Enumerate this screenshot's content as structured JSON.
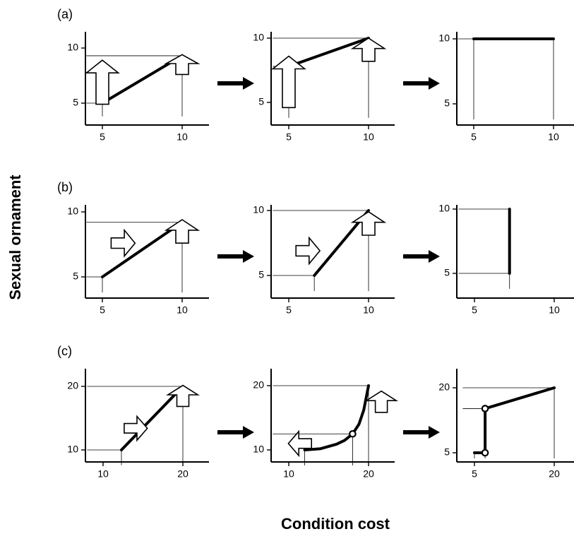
{
  "figure": {
    "ylabel": "Sexual ornament",
    "xlabel": "Condition cost"
  },
  "rows": [
    {
      "label": "(a)",
      "panels": [
        {
          "xticks": [
            "5",
            "10"
          ],
          "yticks": [
            "5",
            "10"
          ],
          "lines": [
            {
              "points": [
                [
                  5,
                  5
                ],
                [
                  10,
                  9.3
                ]
              ]
            }
          ],
          "guides": [
            [
              [
                5,
                5
              ],
              [
                4,
                5
              ]
            ],
            [
              [
                5,
                5
              ],
              [
                5,
                3.8
              ]
            ],
            [
              [
                10,
                9.3
              ],
              [
                4,
                9.3
              ]
            ],
            [
              [
                10,
                9.3
              ],
              [
                10,
                3.8
              ]
            ]
          ],
          "arrows": [
            {
              "dir": "up",
              "x": 5,
              "y": 6.9,
              "length": 4.0,
              "width": 0.8
            },
            {
              "dir": "up",
              "x": 10,
              "y": 8.5,
              "length": 1.8,
              "width": 0.8
            }
          ],
          "circles": []
        },
        {
          "xticks": [
            "5",
            "10"
          ],
          "yticks": [
            "5",
            "10"
          ],
          "lines": [
            {
              "points": [
                [
                  5,
                  7.8
                ],
                [
                  10,
                  10
                ]
              ]
            }
          ],
          "guides": [
            [
              [
                5,
                7.8
              ],
              [
                4,
                7.8
              ]
            ],
            [
              [
                5,
                7.8
              ],
              [
                5,
                3.8
              ]
            ],
            [
              [
                10,
                10
              ],
              [
                4,
                10
              ]
            ],
            [
              [
                10,
                10
              ],
              [
                10,
                3.8
              ]
            ]
          ],
          "arrows": [
            {
              "dir": "up",
              "x": 5,
              "y": 6.6,
              "length": 4.0,
              "width": 0.8
            },
            {
              "dir": "up",
              "x": 10,
              "y": 9.1,
              "length": 1.8,
              "width": 0.8
            }
          ],
          "circles": []
        },
        {
          "xticks": [
            "5",
            "10"
          ],
          "yticks": [
            "5",
            "10"
          ],
          "lines": [
            {
              "points": [
                [
                  5,
                  10
                ],
                [
                  10,
                  10
                ]
              ]
            }
          ],
          "guides": [
            [
              [
                5,
                10
              ],
              [
                4,
                10
              ]
            ],
            [
              [
                5,
                10
              ],
              [
                5,
                3.8
              ]
            ],
            [
              [
                10,
                10
              ],
              [
                10,
                3.8
              ]
            ]
          ],
          "arrows": [],
          "circles": []
        }
      ]
    },
    {
      "label": "(b)",
      "panels": [
        {
          "xticks": [
            "5",
            "10"
          ],
          "yticks": [
            "5",
            "10"
          ],
          "lines": [
            {
              "points": [
                [
                  5,
                  5
                ],
                [
                  10,
                  9.2
                ]
              ]
            }
          ],
          "guides": [
            [
              [
                5,
                5
              ],
              [
                4,
                5
              ]
            ],
            [
              [
                5,
                5
              ],
              [
                5,
                3.8
              ]
            ],
            [
              [
                10,
                9.2
              ],
              [
                4,
                9.2
              ]
            ],
            [
              [
                10,
                9.2
              ],
              [
                10,
                3.8
              ]
            ]
          ],
          "arrows": [
            {
              "dir": "right",
              "x": 6.3,
              "y": 7.6,
              "length": 1.5,
              "width": 0.8
            },
            {
              "dir": "up",
              "x": 10,
              "y": 8.5,
              "length": 1.8,
              "width": 0.8
            }
          ],
          "circles": []
        },
        {
          "xticks": [
            "5",
            "10"
          ],
          "yticks": [
            "5",
            "10"
          ],
          "lines": [
            {
              "points": [
                [
                  6.6,
                  5
                ],
                [
                  10,
                  10
                ]
              ]
            }
          ],
          "guides": [
            [
              [
                6.6,
                5
              ],
              [
                4,
                5
              ]
            ],
            [
              [
                6.6,
                5
              ],
              [
                6.6,
                3.8
              ]
            ],
            [
              [
                10,
                10
              ],
              [
                4,
                10
              ]
            ],
            [
              [
                10,
                10
              ],
              [
                10,
                3.8
              ]
            ]
          ],
          "arrows": [
            {
              "dir": "right",
              "x": 6.2,
              "y": 6.9,
              "length": 1.5,
              "width": 0.8
            },
            {
              "dir": "up",
              "x": 10,
              "y": 9.0,
              "length": 1.8,
              "width": 0.8
            }
          ],
          "circles": []
        },
        {
          "xticks": [
            "5",
            "10"
          ],
          "yticks": [
            "5",
            "10"
          ],
          "lines": [
            {
              "points": [
                [
                  7.2,
                  5
                ],
                [
                  7.2,
                  10
                ]
              ]
            }
          ],
          "guides": [
            [
              [
                7.2,
                5
              ],
              [
                4,
                5
              ]
            ],
            [
              [
                7.2,
                10
              ],
              [
                4,
                10
              ]
            ],
            [
              [
                7.2,
                5
              ],
              [
                7.2,
                3.8
              ]
            ]
          ],
          "arrows": [],
          "circles": []
        }
      ]
    },
    {
      "label": "(c)",
      "panels": [
        {
          "xticks": [
            "10",
            "20"
          ],
          "yticks": [
            "10",
            "20"
          ],
          "lines": [
            {
              "points": [
                [
                  12.3,
                  10
                ],
                [
                  20,
                  20
                ]
              ]
            }
          ],
          "guides": [
            [
              [
                12.3,
                10
              ],
              [
                8,
                10
              ]
            ],
            [
              [
                12.3,
                10
              ],
              [
                12.3,
                7.6
              ]
            ],
            [
              [
                20,
                20
              ],
              [
                8,
                20
              ]
            ],
            [
              [
                20,
                20
              ],
              [
                20,
                7.6
              ]
            ]
          ],
          "arrows": [
            {
              "dir": "right",
              "x": 14.1,
              "y": 13.4,
              "length": 2.9,
              "width": 1.5
            },
            {
              "dir": "up",
              "x": 20,
              "y": 18.5,
              "length": 3.3,
              "width": 1.5
            }
          ],
          "circles": []
        },
        {
          "xticks": [
            "10",
            "20"
          ],
          "yticks": [
            "10",
            "20"
          ],
          "lines": [
            {
              "points": [
                [
                  12,
                  10
                ],
                [
                  14,
                  10.2
                ],
                [
                  16,
                  10.9
                ],
                [
                  17,
                  11.5
                ],
                [
                  18,
                  12.5
                ],
                [
                  18.8,
                  14
                ],
                [
                  19.4,
                  16.2
                ],
                [
                  20,
                  20
                ]
              ]
            }
          ],
          "guides": [
            [
              [
                12,
                10
              ],
              [
                12,
                7.6
              ]
            ],
            [
              [
                18,
                12.5
              ],
              [
                8,
                12.5
              ]
            ],
            [
              [
                18,
                12.5
              ],
              [
                18,
                7.6
              ]
            ],
            [
              [
                20,
                20
              ],
              [
                8,
                20
              ]
            ],
            [
              [
                20,
                20
              ],
              [
                20,
                7.6
              ]
            ]
          ],
          "arrows": [
            {
              "dir": "left",
              "x": 11.4,
              "y": 11.0,
              "length": 2.9,
              "width": 1.5
            },
            {
              "dir": "up",
              "x": 21.6,
              "y": 17.5,
              "length": 3.3,
              "width": 1.5
            }
          ],
          "circles": [
            [
              18,
              12.5
            ]
          ]
        },
        {
          "xticks": [
            "5",
            "20"
          ],
          "yticks": [
            "5",
            "20"
          ],
          "lines": [
            {
              "points": [
                [
                  5,
                  5
                ],
                [
                  7,
                  5
                ]
              ]
            },
            {
              "points": [
                [
                  7,
                  5
                ],
                [
                  7,
                  15.2
                ]
              ]
            },
            {
              "points": [
                [
                  7,
                  15.2
                ],
                [
                  20,
                  20
                ]
              ]
            }
          ],
          "guides": [
            [
              [
                5,
                5
              ],
              [
                5,
                3.7
              ]
            ],
            [
              [
                7,
                5
              ],
              [
                7,
                3.7
              ]
            ],
            [
              [
                7,
                15.2
              ],
              [
                2.8,
                15.2
              ]
            ],
            [
              [
                20,
                20
              ],
              [
                2.8,
                20
              ]
            ],
            [
              [
                20,
                20
              ],
              [
                20,
                3.7
              ]
            ]
          ],
          "arrows": [],
          "circles": [
            [
              7,
              5
            ],
            [
              7,
              15.2
            ]
          ]
        }
      ]
    }
  ]
}
